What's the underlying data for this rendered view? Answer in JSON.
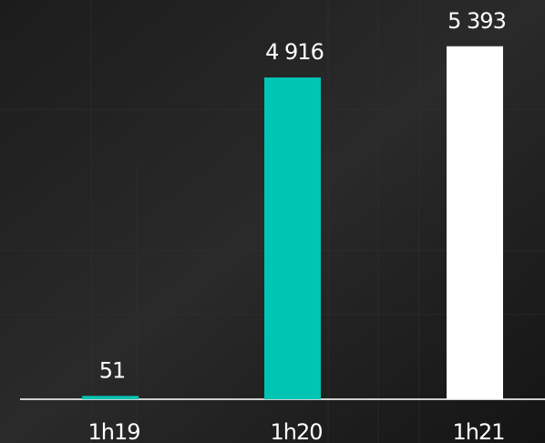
{
  "chart_data": {
    "type": "bar",
    "categories": [
      "1h19",
      "1h20",
      "1h21"
    ],
    "values": [
      51,
      4916,
      5393
    ],
    "value_labels": [
      "51",
      "4 916",
      "5 393"
    ],
    "colors": [
      "#00c4b4",
      "#00c4b4",
      "#ffffff"
    ],
    "ylim": [
      0,
      6100
    ]
  }
}
